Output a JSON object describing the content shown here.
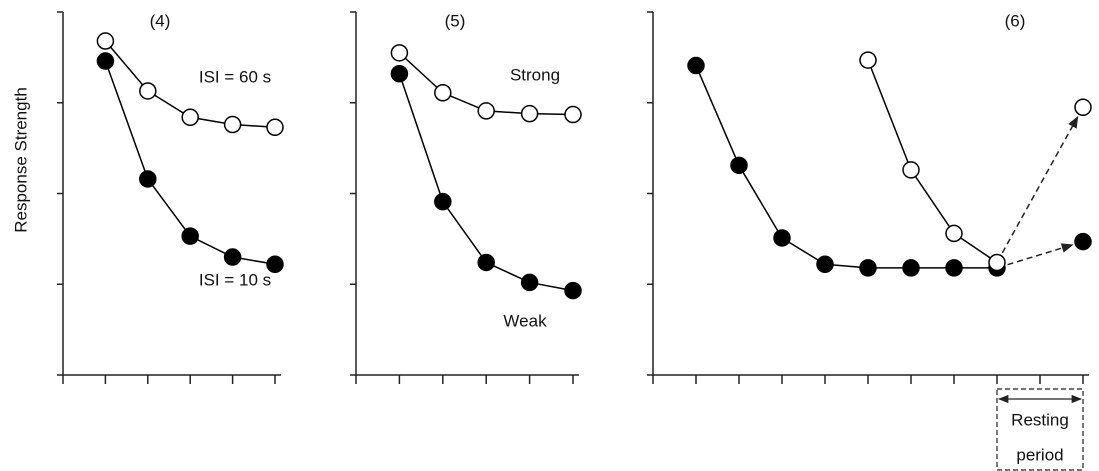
{
  "chart_data": [
    {
      "type": "line",
      "title": "(4)",
      "y_label": "Response Strength",
      "xlim": [
        0,
        5
      ],
      "xticks": [
        0,
        1,
        2,
        3,
        4,
        5
      ],
      "ylim": [
        0,
        4
      ],
      "yticks": [
        0,
        1,
        2,
        3,
        4
      ],
      "series": [
        {
          "marker": "open",
          "color": "#000000",
          "x": [
            1,
            2,
            3,
            4,
            5
          ],
          "values": [
            3.68,
            3.13,
            2.84,
            2.76,
            2.73
          ]
        },
        {
          "marker": "filled",
          "color": "#000000",
          "x": [
            1,
            2,
            3,
            4,
            5
          ],
          "values": [
            3.46,
            2.16,
            1.53,
            1.3,
            1.22
          ]
        }
      ],
      "annotations": [
        "ISI = 60 s",
        "ISI = 10 s"
      ]
    },
    {
      "type": "line",
      "title": "(5)",
      "xlim": [
        0,
        5
      ],
      "xticks": [
        0,
        1,
        2,
        3,
        4,
        5
      ],
      "ylim": [
        0,
        4
      ],
      "yticks": [
        0,
        1,
        2,
        3,
        4
      ],
      "series": [
        {
          "marker": "open",
          "color": "#000000",
          "x": [
            1,
            2,
            3,
            4,
            5
          ],
          "values": [
            3.55,
            3.11,
            2.91,
            2.88,
            2.87
          ]
        },
        {
          "marker": "filled",
          "color": "#000000",
          "x": [
            1,
            2,
            3,
            4,
            5
          ],
          "values": [
            3.32,
            1.91,
            1.24,
            1.02,
            0.93
          ]
        }
      ],
      "annotations": [
        "Strong",
        "Weak"
      ]
    },
    {
      "type": "line",
      "title": "(6)",
      "xlim": [
        0,
        10
      ],
      "xticks": [
        0,
        1,
        2,
        3,
        4,
        5,
        6,
        7,
        8,
        9,
        10
      ],
      "ylim": [
        0,
        4
      ],
      "yticks": [
        0,
        1,
        2,
        3,
        4
      ],
      "series": [
        {
          "marker": "filled",
          "color": "#000000",
          "x": [
            1,
            2,
            3,
            4,
            5,
            6,
            7,
            8,
            10
          ],
          "values": [
            3.41,
            2.31,
            1.51,
            1.22,
            1.18,
            1.18,
            1.18,
            1.18,
            1.47
          ],
          "dashed_last_segment": true
        },
        {
          "marker": "open",
          "color": "#000000",
          "x": [
            5,
            6,
            7,
            8,
            10
          ],
          "values": [
            3.47,
            2.26,
            1.56,
            1.24,
            2.95
          ],
          "dashed_last_segment": true
        }
      ],
      "annotations": [
        "Resting",
        "period"
      ]
    }
  ]
}
